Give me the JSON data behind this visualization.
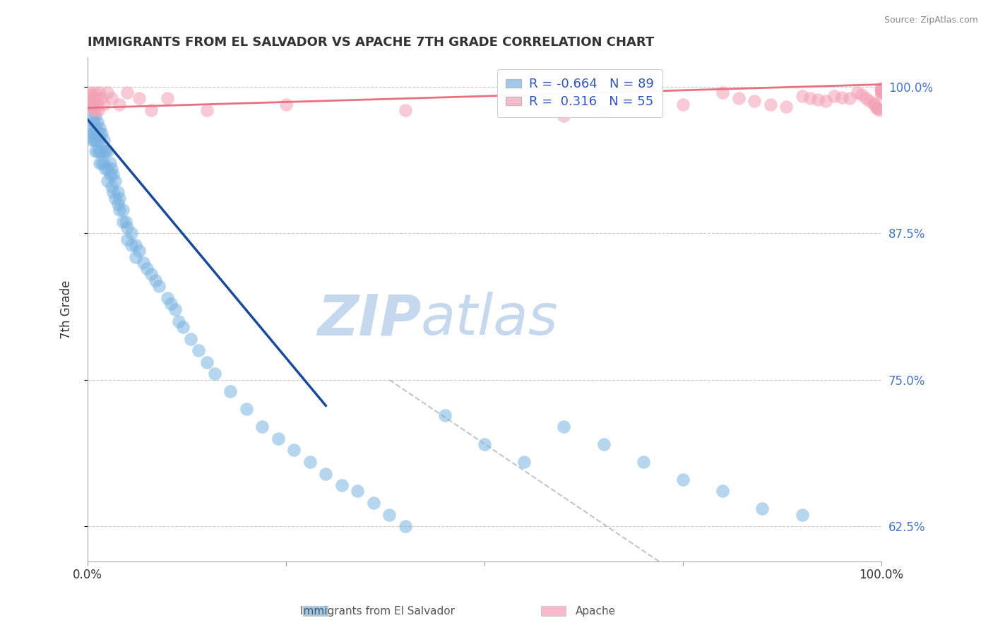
{
  "title": "IMMIGRANTS FROM EL SALVADOR VS APACHE 7TH GRADE CORRELATION CHART",
  "source_text": "Source: ZipAtlas.com",
  "ylabel": "7th Grade",
  "ylabel_right_ticks": [
    "100.0%",
    "87.5%",
    "75.0%",
    "62.5%"
  ],
  "ylabel_right_vals": [
    1.0,
    0.875,
    0.75,
    0.625
  ],
  "xlim": [
    0.0,
    1.0
  ],
  "ylim": [
    0.595,
    1.025
  ],
  "blue_R": -0.664,
  "blue_N": 89,
  "pink_R": 0.316,
  "pink_N": 55,
  "blue_color": "#7ab3e0",
  "pink_color": "#f4a0b5",
  "blue_line_color": "#1a4a99",
  "pink_line_color": "#e87080",
  "watermark_zip": "ZIP",
  "watermark_atlas": "atlas",
  "watermark_color_zip": "#c5d8ee",
  "watermark_color_atlas": "#c5d8ee",
  "legend_blue_label": "Immigrants from El Salvador",
  "legend_pink_label": "Apache",
  "blue_line_x0": 0.0,
  "blue_line_y0": 0.972,
  "blue_line_x1": 0.3,
  "blue_line_y1": 0.728,
  "pink_line_x0": 0.0,
  "pink_line_y0": 0.982,
  "pink_line_x1": 1.0,
  "pink_line_y1": 1.002,
  "dash_line_x0": 0.38,
  "dash_line_y0": 0.75,
  "dash_line_x1": 0.72,
  "dash_line_y1": 0.595,
  "blue_scatter_x": [
    0.005,
    0.005,
    0.005,
    0.005,
    0.005,
    0.008,
    0.008,
    0.008,
    0.01,
    0.01,
    0.01,
    0.01,
    0.012,
    0.012,
    0.012,
    0.015,
    0.015,
    0.015,
    0.015,
    0.015,
    0.018,
    0.018,
    0.018,
    0.02,
    0.02,
    0.02,
    0.022,
    0.022,
    0.025,
    0.025,
    0.025,
    0.028,
    0.028,
    0.03,
    0.03,
    0.032,
    0.032,
    0.035,
    0.035,
    0.038,
    0.038,
    0.04,
    0.04,
    0.044,
    0.044,
    0.048,
    0.05,
    0.05,
    0.055,
    0.055,
    0.06,
    0.06,
    0.065,
    0.07,
    0.075,
    0.08,
    0.085,
    0.09,
    0.1,
    0.105,
    0.11,
    0.115,
    0.12,
    0.13,
    0.14,
    0.15,
    0.16,
    0.18,
    0.2,
    0.22,
    0.24,
    0.26,
    0.28,
    0.3,
    0.32,
    0.34,
    0.36,
    0.38,
    0.4,
    0.45,
    0.5,
    0.55,
    0.6,
    0.65,
    0.7,
    0.75,
    0.8,
    0.85,
    0.9
  ],
  "blue_scatter_y": [
    0.985,
    0.975,
    0.965,
    0.96,
    0.955,
    0.97,
    0.96,
    0.955,
    0.975,
    0.965,
    0.955,
    0.945,
    0.97,
    0.955,
    0.945,
    0.965,
    0.96,
    0.955,
    0.945,
    0.935,
    0.96,
    0.945,
    0.935,
    0.955,
    0.945,
    0.935,
    0.945,
    0.93,
    0.945,
    0.93,
    0.92,
    0.935,
    0.925,
    0.93,
    0.915,
    0.925,
    0.91,
    0.92,
    0.905,
    0.91,
    0.9,
    0.905,
    0.895,
    0.895,
    0.885,
    0.885,
    0.88,
    0.87,
    0.875,
    0.865,
    0.865,
    0.855,
    0.86,
    0.85,
    0.845,
    0.84,
    0.835,
    0.83,
    0.82,
    0.815,
    0.81,
    0.8,
    0.795,
    0.785,
    0.775,
    0.765,
    0.755,
    0.74,
    0.725,
    0.71,
    0.7,
    0.69,
    0.68,
    0.67,
    0.66,
    0.655,
    0.645,
    0.635,
    0.625,
    0.72,
    0.695,
    0.68,
    0.71,
    0.695,
    0.68,
    0.665,
    0.655,
    0.64,
    0.635
  ],
  "pink_scatter_x": [
    0.003,
    0.004,
    0.005,
    0.006,
    0.007,
    0.008,
    0.009,
    0.01,
    0.011,
    0.012,
    0.013,
    0.015,
    0.017,
    0.02,
    0.025,
    0.03,
    0.04,
    0.05,
    0.065,
    0.08,
    0.1,
    0.15,
    0.25,
    0.4,
    0.6,
    0.65,
    0.7,
    0.75,
    0.8,
    0.82,
    0.84,
    0.86,
    0.88,
    0.9,
    0.91,
    0.92,
    0.93,
    0.94,
    0.95,
    0.96,
    0.97,
    0.975,
    0.98,
    0.985,
    0.99,
    0.992,
    0.994,
    0.996,
    0.998,
    0.999,
    1.0,
    1.0,
    1.0,
    1.0,
    1.0
  ],
  "pink_scatter_y": [
    0.995,
    0.993,
    0.99,
    0.988,
    0.985,
    0.982,
    0.98,
    0.995,
    0.99,
    0.985,
    0.98,
    0.995,
    0.99,
    0.985,
    0.995,
    0.99,
    0.985,
    0.995,
    0.99,
    0.98,
    0.99,
    0.98,
    0.985,
    0.98,
    0.975,
    0.98,
    0.99,
    0.985,
    0.995,
    0.99,
    0.988,
    0.985,
    0.983,
    0.992,
    0.99,
    0.989,
    0.988,
    0.992,
    0.991,
    0.99,
    0.995,
    0.993,
    0.99,
    0.988,
    0.986,
    0.984,
    0.982,
    0.981,
    0.98,
    0.999,
    0.998,
    0.997,
    0.996,
    0.995,
    0.994
  ]
}
